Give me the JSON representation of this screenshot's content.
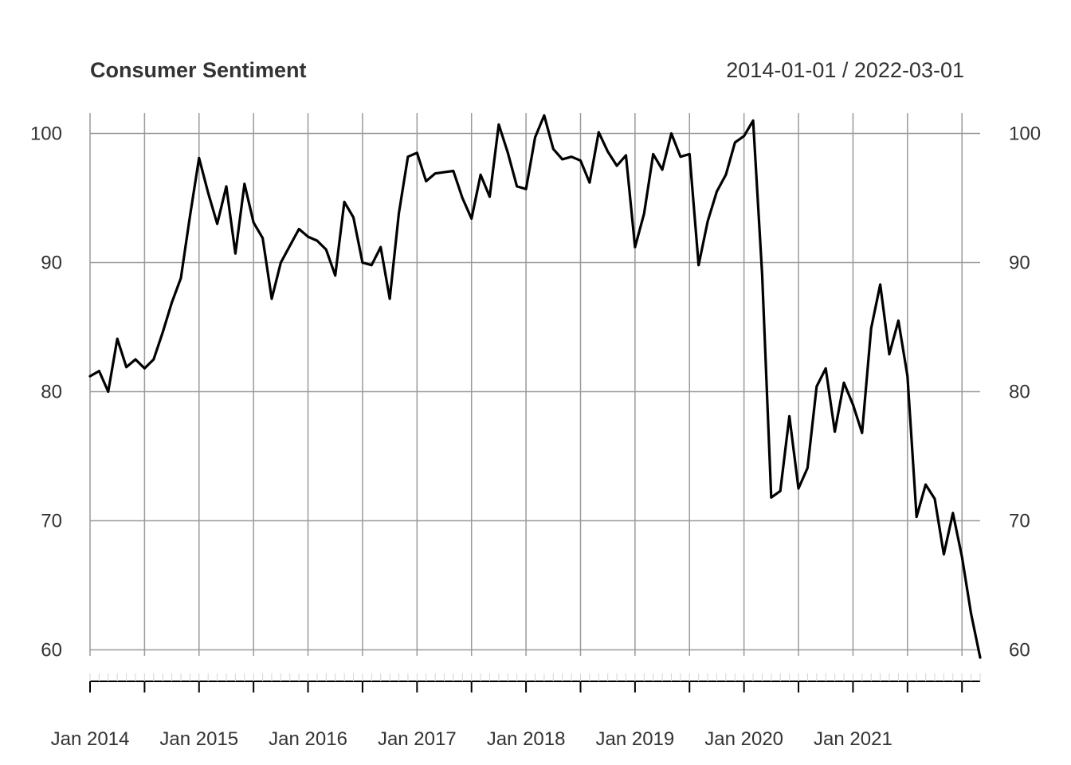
{
  "chart_data": {
    "type": "line",
    "title": "Consumer Sentiment",
    "date_range_label": "2014-01-01 / 2022-03-01",
    "xlabel": "",
    "ylabel": "",
    "ylim": [
      59,
      101.5
    ],
    "y_ticks": [
      "60",
      "70",
      "80",
      "90",
      "100"
    ],
    "x_tick_labels": [
      "Jan 2014",
      "Jan 2015",
      "Jan 2016",
      "Jan 2017",
      "Jan 2018",
      "Jan 2019",
      "Jan 2020",
      "Jan 2021"
    ],
    "x_start": "2014-01",
    "x_end": "2022-03",
    "grid": true,
    "series": [
      {
        "values": [
          81.2,
          81.6,
          80.0,
          84.1,
          81.9,
          82.5,
          81.8,
          82.5,
          84.6,
          86.9,
          88.8,
          93.6,
          98.1,
          95.4,
          93.0,
          95.9,
          90.7,
          96.1,
          93.1,
          91.9,
          87.2,
          90.0,
          91.3,
          92.6,
          92.0,
          91.7,
          91.0,
          89.0,
          94.7,
          93.5,
          90.0,
          89.8,
          91.2,
          87.2,
          93.8,
          98.2,
          98.5,
          96.3,
          96.9,
          97.0,
          97.1,
          95.0,
          93.4,
          96.8,
          95.1,
          100.7,
          98.5,
          95.9,
          95.7,
          99.7,
          101.4,
          98.8,
          98.0,
          98.2,
          97.9,
          96.2,
          100.1,
          98.6,
          97.5,
          98.3,
          91.2,
          93.8,
          98.4,
          97.2,
          100.0,
          98.2,
          98.4,
          89.8,
          93.2,
          95.5,
          96.8,
          99.3,
          99.8,
          101.0,
          89.1,
          71.8,
          72.3,
          78.1,
          72.5,
          74.1,
          80.4,
          81.8,
          76.9,
          80.7,
          79.0,
          76.8,
          84.9,
          88.3,
          82.9,
          85.5,
          81.2,
          70.3,
          72.8,
          71.7,
          67.4,
          70.6,
          67.2,
          62.8,
          59.4
        ]
      }
    ]
  }
}
